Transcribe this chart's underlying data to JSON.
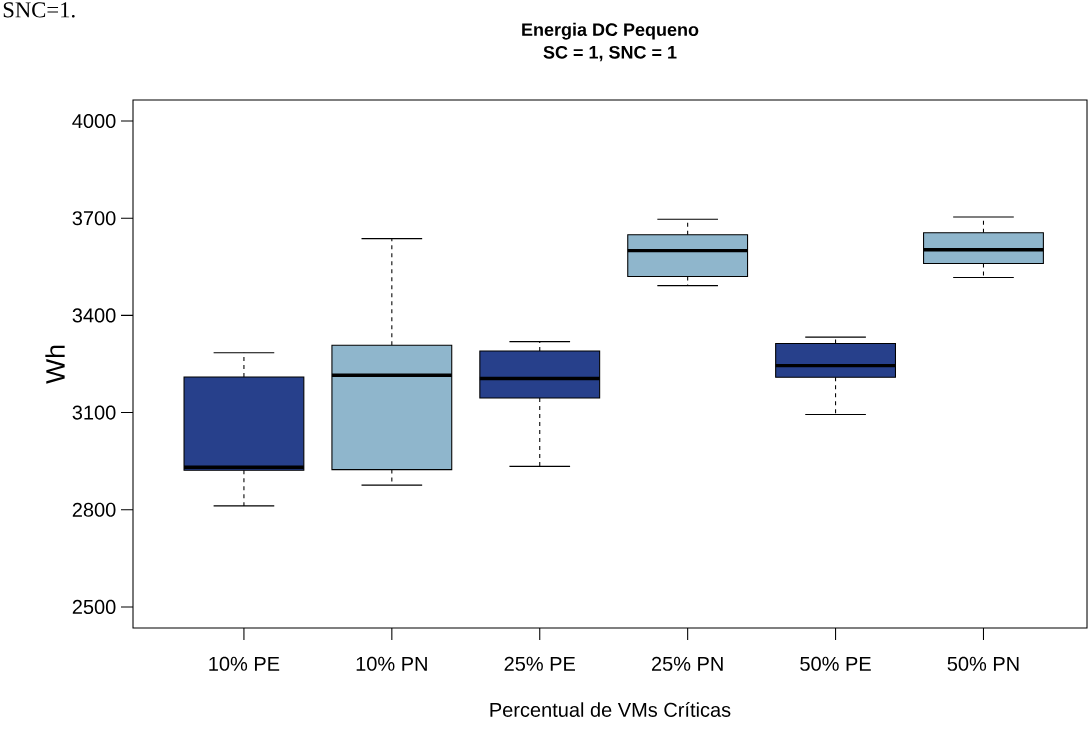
{
  "chart_data": {
    "type": "box",
    "title": "Energia    DC Pequeno",
    "subtitle": "SC = 1, SNC = 1",
    "xlabel": "Percentual de VMs Críticas",
    "ylabel": "Wh",
    "annotations": [
      "SNC=1."
    ],
    "categories": [
      "10% PE",
      "10% PN",
      "25% PE",
      "25% PN",
      "50% PE",
      "50% PN"
    ],
    "colors": [
      "#27408b",
      "#8fb6cc",
      "#27408b",
      "#8fb6cc",
      "#27408b",
      "#8fb6cc"
    ],
    "boxes": [
      {
        "low": 2812,
        "q1": 2922,
        "median": 2931,
        "q3": 3210,
        "high": 3285
      },
      {
        "low": 2876,
        "q1": 2924,
        "median": 3215,
        "q3": 3308,
        "high": 3637
      },
      {
        "low": 2934,
        "q1": 3145,
        "median": 3205,
        "q3": 3290,
        "high": 3319
      },
      {
        "low": 3492,
        "q1": 3520,
        "median": 3600,
        "q3": 3649,
        "high": 3697
      },
      {
        "low": 3094,
        "q1": 3209,
        "median": 3245,
        "q3": 3313,
        "high": 3333
      },
      {
        "low": 3517,
        "q1": 3560,
        "median": 3603,
        "q3": 3655,
        "high": 3704
      }
    ],
    "ylim": [
      2435,
      4065
    ],
    "yticks": [
      2500,
      2800,
      3100,
      3400,
      3700,
      4000
    ],
    "line_style": "dashed",
    "grid": false
  }
}
